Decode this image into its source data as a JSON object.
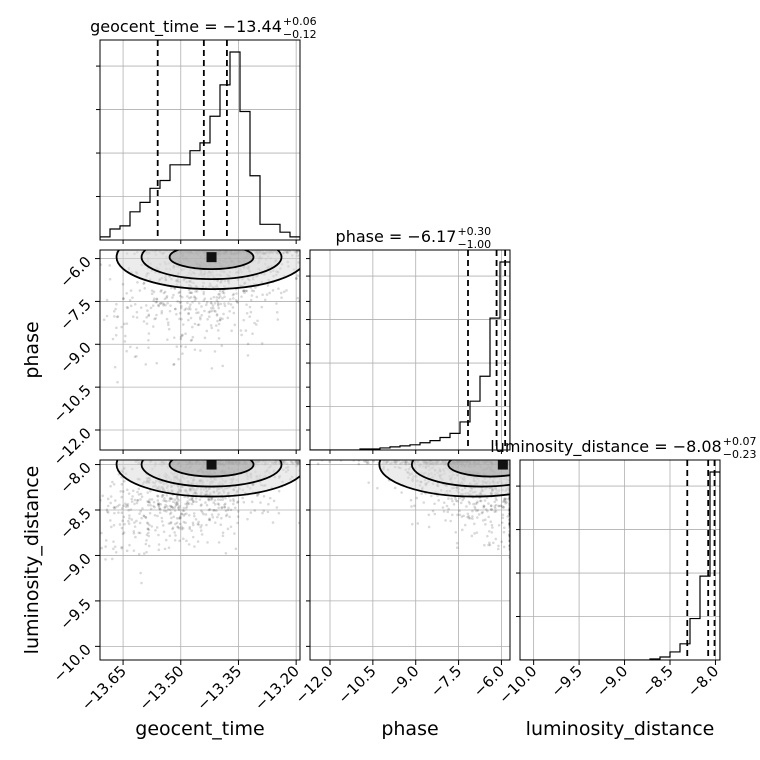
{
  "chart_data": {
    "type": "corner",
    "grid": true,
    "parameters": [
      {
        "name": "geocent_time",
        "axis_label": "geocent_time",
        "title_prefix": "geocent_time = ",
        "median": "−13.44",
        "upper": "+0.06",
        "lower": "−0.12",
        "range": [
          -13.71,
          -13.19
        ],
        "ticks": [
          -13.65,
          -13.5,
          -13.35,
          -13.2
        ],
        "tick_labels": [
          "−13.65",
          "−13.50",
          "−13.35",
          "−13.20"
        ],
        "quantiles": [
          -13.56,
          -13.44,
          -13.38
        ],
        "hist_bins_x": [
          -13.71,
          -13.684,
          -13.658,
          -13.632,
          -13.606,
          -13.58,
          -13.554,
          -13.528,
          -13.502,
          -13.476,
          -13.45,
          -13.424,
          -13.398,
          -13.372,
          -13.346,
          -13.32,
          -13.294,
          -13.268,
          -13.242,
          -13.216,
          -13.19
        ],
        "hist_counts": [
          2,
          7,
          9,
          18,
          24,
          33,
          38,
          48,
          48,
          57,
          62,
          79,
          99,
          120,
          82,
          41,
          10,
          10,
          5,
          2
        ]
      },
      {
        "name": "phase",
        "axis_label": "phase",
        "title_prefix": "phase = ",
        "median": "−6.17",
        "upper": "+0.30",
        "lower": "−1.00",
        "range": [
          -12.7,
          -5.7
        ],
        "ticks": [
          -12.0,
          -10.5,
          -9.0,
          -7.5,
          -6.0
        ],
        "tick_labels": [
          "−12.0",
          "−10.5",
          "−9.0",
          "−7.5",
          "−6.0"
        ],
        "quantiles": [
          -7.17,
          -6.17,
          -5.87
        ],
        "hist_bins_x": [
          -12.7,
          -12.35,
          -12.0,
          -11.65,
          -11.3,
          -10.95,
          -10.6,
          -10.25,
          -9.9,
          -9.55,
          -9.2,
          -8.85,
          -8.5,
          -8.15,
          -7.8,
          -7.45,
          -7.1,
          -6.75,
          -6.4,
          -6.05,
          -5.7
        ],
        "hist_counts": [
          0,
          0,
          0,
          0,
          0,
          1,
          1,
          2,
          3,
          4,
          5,
          7,
          9,
          12,
          16,
          27,
          47,
          71,
          127,
          181
        ]
      },
      {
        "name": "luminosity_distance",
        "axis_label": "luminosity_distance",
        "title_prefix": "luminosity_distance = ",
        "median": "−8.08",
        "upper": "+0.07",
        "lower": "−0.23",
        "range": [
          -10.15,
          -7.95
        ],
        "ticks": [
          -10.0,
          -9.5,
          -9.0,
          -8.5,
          -8.0
        ],
        "tick_labels": [
          "−10.0",
          "−9.5",
          "−9.0",
          "−8.5",
          "−8.0"
        ],
        "quantiles": [
          -8.31,
          -8.08,
          -8.01
        ],
        "hist_bins_x": [
          -10.15,
          -10.04,
          -9.93,
          -9.82,
          -9.71,
          -9.6,
          -9.49,
          -9.38,
          -9.27,
          -9.16,
          -9.05,
          -8.94,
          -8.83,
          -8.72,
          -8.61,
          -8.5,
          -8.39,
          -8.28,
          -8.17,
          -8.06,
          -7.95
        ],
        "hist_counts": [
          0,
          0,
          0,
          0,
          0,
          0,
          0,
          0,
          0,
          0,
          0,
          0,
          0,
          1,
          3,
          8,
          16,
          41,
          83,
          186
        ]
      }
    ],
    "scatter": [
      {
        "x": "geocent_time",
        "y": "phase",
        "center": [
          -13.42,
          -6.5
        ],
        "spread": [
          0.12,
          1.3
        ],
        "corr": 0.35,
        "n": 900
      },
      {
        "x": "geocent_time",
        "y": "luminosity_distance",
        "center": [
          -13.45,
          -8.2
        ],
        "spread": [
          0.13,
          0.35
        ],
        "corr": 0.55,
        "n": 1100
      },
      {
        "x": "phase",
        "y": "luminosity_distance",
        "center": [
          -7.0,
          -8.15
        ],
        "spread": [
          1.5,
          0.3
        ],
        "corr": -0.5,
        "n": 900
      }
    ],
    "maxima": [
      {
        "x": "geocent_time",
        "y": "phase",
        "at": [
          -13.42,
          -5.95
        ]
      },
      {
        "x": "geocent_time",
        "y": "luminosity_distance",
        "at": [
          -13.42,
          -8.0
        ]
      },
      {
        "x": "phase",
        "y": "luminosity_distance",
        "at": [
          -5.95,
          -8.0
        ]
      }
    ]
  }
}
